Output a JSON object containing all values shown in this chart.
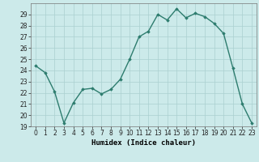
{
  "x": [
    0,
    1,
    2,
    3,
    4,
    5,
    6,
    7,
    8,
    9,
    10,
    11,
    12,
    13,
    14,
    15,
    16,
    17,
    18,
    19,
    20,
    21,
    22,
    23
  ],
  "y": [
    24.4,
    23.8,
    22.1,
    19.3,
    21.1,
    22.3,
    22.4,
    21.9,
    22.3,
    23.2,
    25.0,
    27.0,
    27.5,
    29.0,
    28.5,
    29.5,
    28.7,
    29.1,
    28.8,
    28.2,
    27.3,
    24.2,
    21.0,
    19.3
  ],
  "line_color": "#2d7c6e",
  "marker": "D",
  "marker_size": 1.8,
  "bg_color": "#cceaea",
  "grid_color": "#aad0d0",
  "xlabel": "Humidex (Indice chaleur)",
  "ylim": [
    19,
    30
  ],
  "xlim": [
    -0.5,
    23.5
  ],
  "yticks": [
    19,
    20,
    21,
    22,
    23,
    24,
    25,
    26,
    27,
    28,
    29
  ],
  "xticks": [
    0,
    1,
    2,
    3,
    4,
    5,
    6,
    7,
    8,
    9,
    10,
    11,
    12,
    13,
    14,
    15,
    16,
    17,
    18,
    19,
    20,
    21,
    22,
    23
  ],
  "tick_fontsize": 5.5,
  "xlabel_fontsize": 6.5,
  "line_width": 1.0
}
